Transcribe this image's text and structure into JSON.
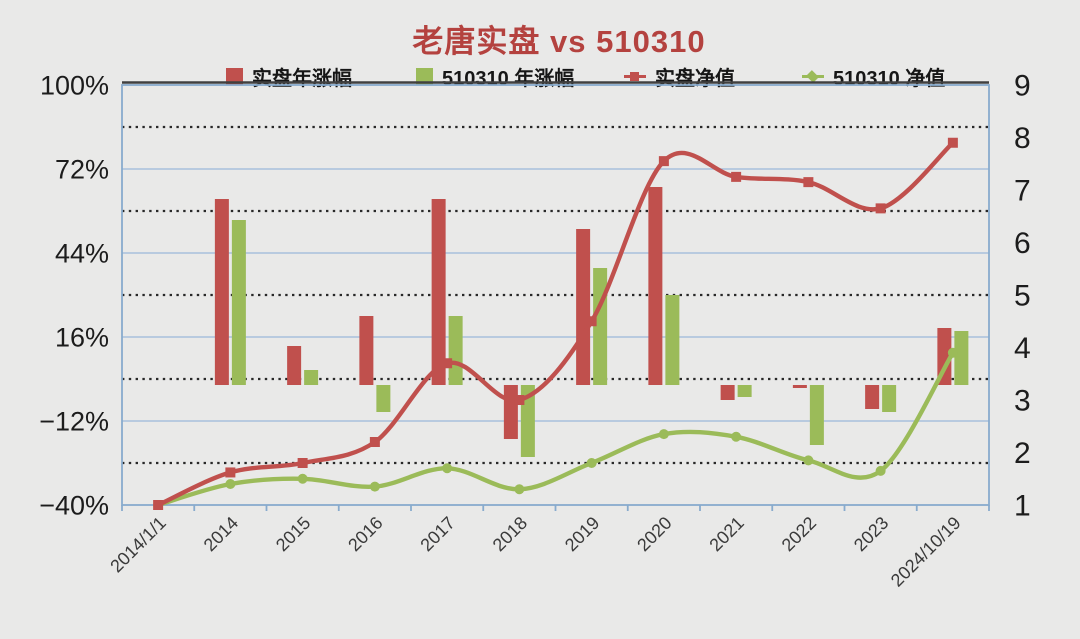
{
  "title": "老唐实盘 vs 510310",
  "colors": {
    "title": "#B4423F",
    "red_series": "#C0504D",
    "green_series": "#9BBB59",
    "background": "#e9e9e8",
    "plot_border": "#88ABCD",
    "solid_gridline": "#A8C0DC",
    "dotted_gridline": "#282828",
    "dark_top_line": "#404040",
    "axis_text": "#1c1c1c",
    "x_label_text": "#3a3a3a"
  },
  "legend": {
    "items": [
      {
        "label": "实盘年涨幅",
        "marker": "square",
        "color": "#C0504D"
      },
      {
        "label": "510310 年涨幅",
        "marker": "square",
        "color": "#9BBB59"
      },
      {
        "label": "实盘净值",
        "marker": "line-square",
        "color": "#C0504D"
      },
      {
        "label": "510310 净值",
        "marker": "line-diamond",
        "color": "#9BBB59"
      }
    ]
  },
  "chart_data": {
    "type": "bar",
    "subtype": "combo dual-axis: yearly-return bars (left % axis) + cumulative net-value smoothed lines (right axis)",
    "title": "老唐实盘 vs 510310",
    "categories": [
      "2014/1/1",
      "2014",
      "2015",
      "2016",
      "2017",
      "2018",
      "2019",
      "2020",
      "2021",
      "2022",
      "2023",
      "2024/10/19"
    ],
    "series": [
      {
        "name": "实盘年涨幅",
        "type": "bar",
        "axis": "left",
        "unit": "%",
        "color": "#C0504D",
        "values": [
          null,
          62,
          13,
          23,
          62,
          -18,
          52,
          66,
          -5,
          -1,
          -8,
          19
        ]
      },
      {
        "name": "510310 年涨幅",
        "type": "bar",
        "axis": "left",
        "unit": "%",
        "color": "#9BBB59",
        "values": [
          null,
          55,
          5,
          -9,
          23,
          -24,
          39,
          30,
          -4,
          -20,
          -9,
          18
        ]
      },
      {
        "name": "实盘净值",
        "type": "line",
        "axis": "right",
        "marker": "square",
        "color": "#C0504D",
        "values": [
          1.0,
          1.62,
          1.8,
          2.2,
          3.7,
          3.0,
          4.5,
          7.55,
          7.25,
          7.15,
          6.65,
          7.9
        ]
      },
      {
        "name": "510310 净值",
        "type": "line",
        "axis": "right",
        "marker": "circle",
        "color": "#9BBB59",
        "values": [
          1.0,
          1.4,
          1.5,
          1.35,
          1.7,
          1.3,
          1.8,
          2.35,
          2.3,
          1.85,
          1.65,
          3.9
        ]
      }
    ],
    "left_axis": {
      "unit": "%",
      "range": [
        -40,
        100
      ],
      "tick_labels": [
        "100%",
        "72%",
        "44%",
        "16%",
        "−12%",
        "−40%"
      ],
      "tick_values": [
        100,
        72,
        44,
        16,
        -12,
        -40
      ],
      "solid_gridlines": [
        72,
        44,
        16,
        -12
      ],
      "dotted_gridlines": [
        86,
        58,
        30,
        2,
        -26
      ]
    },
    "right_axis": {
      "range": [
        1,
        9
      ],
      "tick_labels": [
        "9",
        "8",
        "7",
        "6",
        "5",
        "4",
        "3",
        "2",
        "1"
      ],
      "tick_values": [
        9,
        8,
        7,
        6,
        5,
        4,
        3,
        2,
        1
      ]
    },
    "grid": "horizontal only",
    "legend_position": "top"
  }
}
